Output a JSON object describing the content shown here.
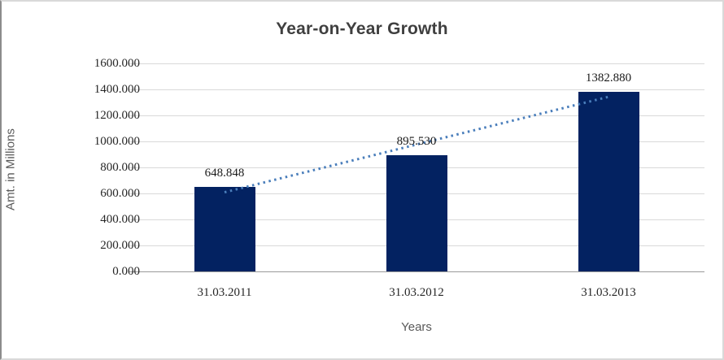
{
  "chart_data": {
    "type": "bar",
    "title": "Year-on-Year Growth",
    "xlabel": "Years",
    "ylabel": "Amt. in Millions",
    "categories": [
      "31.03.2011",
      "31.03.2012",
      "31.03.2013"
    ],
    "values": [
      648.848,
      895.53,
      1382.88
    ],
    "data_labels": [
      "648.848",
      "895.530",
      "1382.880"
    ],
    "y_tick_labels": [
      "0.000",
      "200.000",
      "400.000",
      "600.000",
      "800.000",
      "1000.000",
      "1200.000",
      "1400.000",
      "1600.000"
    ],
    "y_tick_values": [
      0,
      200,
      400,
      600,
      800,
      1000,
      1200,
      1400,
      1600
    ],
    "ylim": [
      0,
      1600
    ],
    "grid": true,
    "legend": "none",
    "trendline": {
      "type": "linear",
      "style": "dotted"
    },
    "colors": {
      "bar": "#032261",
      "trendline": "#4a7ebb",
      "gridline": "#d9d9d9",
      "axis_line": "#9a9a9a",
      "title_text": "#3f3f3f",
      "tick_text": "#262626",
      "axis_title_text": "#595959",
      "background": "#ffffff"
    }
  }
}
